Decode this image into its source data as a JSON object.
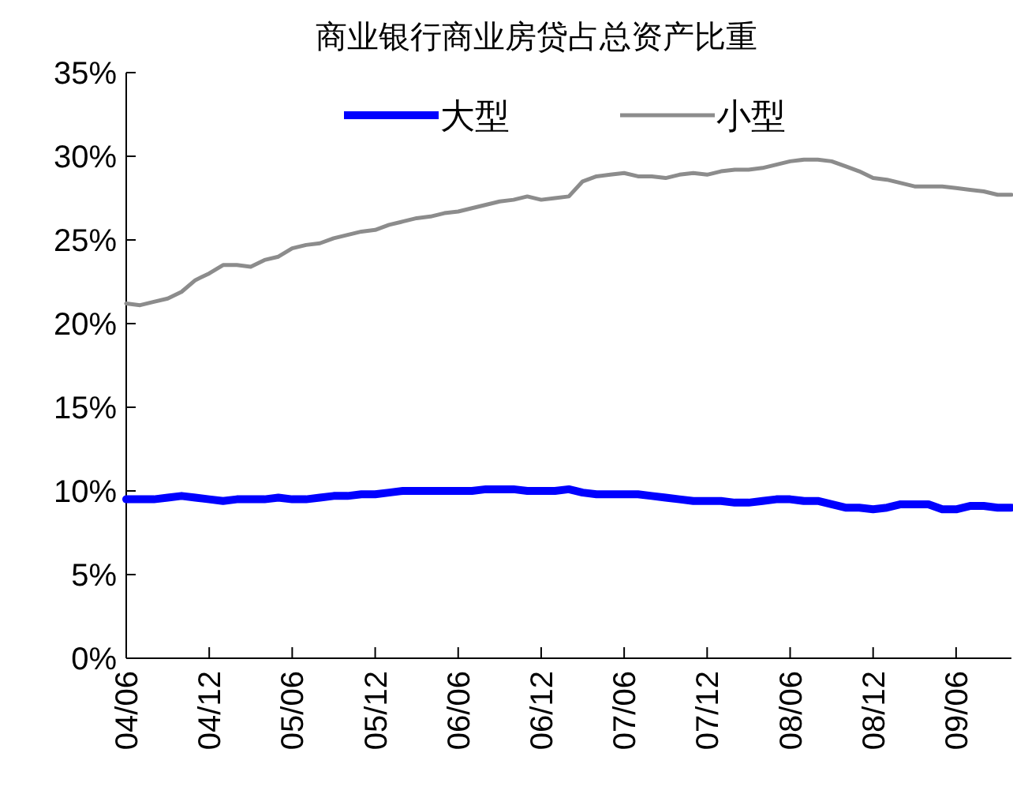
{
  "chart_data": {
    "type": "line",
    "title": "商业银行商业房贷占总资产比重",
    "x": [
      "2004-06",
      "2004-07",
      "2004-08",
      "2004-09",
      "2004-10",
      "2004-11",
      "2004-12",
      "2005-01",
      "2005-02",
      "2005-03",
      "2005-04",
      "2005-05",
      "2005-06",
      "2005-07",
      "2005-08",
      "2005-09",
      "2005-10",
      "2005-11",
      "2005-12",
      "2006-01",
      "2006-02",
      "2006-03",
      "2006-04",
      "2006-05",
      "2006-06",
      "2006-07",
      "2006-08",
      "2006-09",
      "2006-10",
      "2006-11",
      "2006-12",
      "2007-01",
      "2007-02",
      "2007-03",
      "2007-04",
      "2007-05",
      "2007-06",
      "2007-07",
      "2007-08",
      "2007-09",
      "2007-10",
      "2007-11",
      "2007-12",
      "2008-01",
      "2008-02",
      "2008-03",
      "2008-04",
      "2008-05",
      "2008-06",
      "2008-07",
      "2008-08",
      "2008-09",
      "2008-10",
      "2008-11",
      "2008-12",
      "2009-01",
      "2009-02",
      "2009-03",
      "2009-04",
      "2009-05",
      "2009-06",
      "2009-07",
      "2009-08",
      "2009-09",
      "2009-10"
    ],
    "series": [
      {
        "name": "大型",
        "color": "#0000ff",
        "values": [
          9.5,
          9.5,
          9.5,
          9.6,
          9.7,
          9.6,
          9.5,
          9.4,
          9.5,
          9.5,
          9.5,
          9.6,
          9.5,
          9.5,
          9.6,
          9.7,
          9.7,
          9.8,
          9.8,
          9.9,
          10.0,
          10.0,
          10.0,
          10.0,
          10.0,
          10.0,
          10.1,
          10.1,
          10.1,
          10.0,
          10.0,
          10.0,
          10.1,
          9.9,
          9.8,
          9.8,
          9.8,
          9.8,
          9.7,
          9.6,
          9.5,
          9.4,
          9.4,
          9.4,
          9.3,
          9.3,
          9.4,
          9.5,
          9.5,
          9.4,
          9.4,
          9.2,
          9.0,
          9.0,
          8.9,
          9.0,
          9.2,
          9.2,
          9.2,
          8.9,
          8.9,
          9.1,
          9.1,
          9.0,
          9.0
        ]
      },
      {
        "name": "小型",
        "color": "#8c8c8c",
        "values": [
          21.2,
          21.1,
          21.3,
          21.5,
          21.9,
          22.6,
          23.0,
          23.5,
          23.5,
          23.4,
          23.8,
          24.0,
          24.5,
          24.7,
          24.8,
          25.1,
          25.3,
          25.5,
          25.6,
          25.9,
          26.1,
          26.3,
          26.4,
          26.6,
          26.7,
          26.9,
          27.1,
          27.3,
          27.4,
          27.6,
          27.4,
          27.5,
          27.6,
          28.5,
          28.8,
          28.9,
          29.0,
          28.8,
          28.8,
          28.7,
          28.9,
          29.0,
          28.9,
          29.1,
          29.2,
          29.2,
          29.3,
          29.5,
          29.7,
          29.8,
          29.8,
          29.7,
          29.4,
          29.1,
          28.7,
          28.6,
          28.4,
          28.2,
          28.2,
          28.2,
          28.1,
          28.0,
          27.9,
          27.7,
          27.7
        ]
      }
    ],
    "xlim": [
      "2004-06",
      "2009-10"
    ],
    "xticks": [
      {
        "value": "2004-06",
        "label": "04/06"
      },
      {
        "value": "2004-12",
        "label": "04/12"
      },
      {
        "value": "2005-06",
        "label": "05/06"
      },
      {
        "value": "2005-12",
        "label": "05/12"
      },
      {
        "value": "2006-06",
        "label": "06/06"
      },
      {
        "value": "2006-12",
        "label": "06/12"
      },
      {
        "value": "2007-06",
        "label": "07/06"
      },
      {
        "value": "2007-12",
        "label": "07/12"
      },
      {
        "value": "2008-06",
        "label": "08/06"
      },
      {
        "value": "2008-12",
        "label": "08/12"
      },
      {
        "value": "2009-06",
        "label": "09/06"
      }
    ],
    "ylim": [
      0,
      35
    ],
    "yticks": [
      {
        "value": 0,
        "label": "0%"
      },
      {
        "value": 5,
        "label": "5%"
      },
      {
        "value": 10,
        "label": "10%"
      },
      {
        "value": 15,
        "label": "15%"
      },
      {
        "value": 20,
        "label": "20%"
      },
      {
        "value": 25,
        "label": "25%"
      },
      {
        "value": 30,
        "label": "30%"
      },
      {
        "value": 35,
        "label": "35%"
      }
    ],
    "grid": false,
    "legend": "top",
    "marker": "none",
    "line_style": "solid"
  }
}
